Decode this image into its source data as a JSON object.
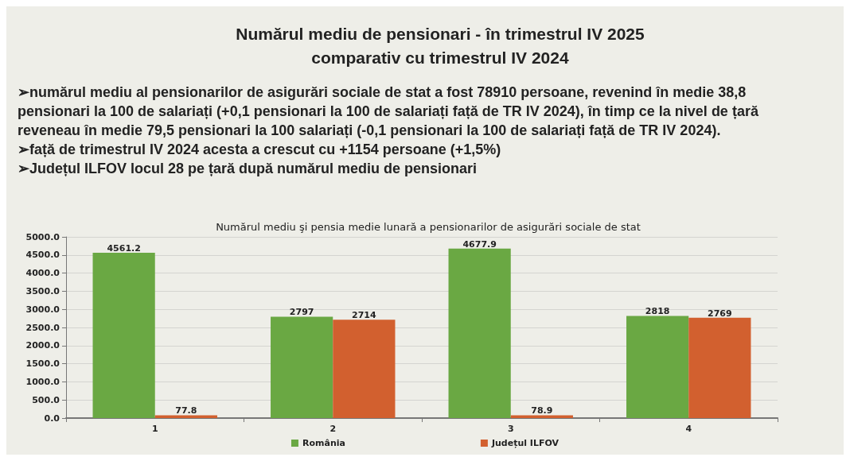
{
  "chart_data": {
    "type": "bar",
    "title": "Numărul mediu de pensionari - în trimestrul IV 2025\ncomparativ cu trimestrul IV 2024",
    "subtitle": "Numărul mediu şi pensia medie lunară a pensionarilor de asigurări sociale de stat",
    "annotations": [
      "➢numărul mediu al pensionarilor de asigurări sociale de stat a fost 78910 persoane, revenind în medie 38,8 pensionari la 100 de salariați (+0,1 pensionari la 100 de salariați față de TR IV 2024), în timp ce la nivel de țară reveneau în medie 79,5 pensionari la 100 salariați (-0,1 pensionari la 100 de salariați față de TR IV 2024).",
      "➢față de trimestrul IV 2024 acesta a crescut cu +1154 persoane (+1,5%)",
      "➢Județul ILFOV locul 28 pe țară după numărul mediu de pensionari"
    ],
    "categories": [
      "1",
      "2",
      "3",
      "4"
    ],
    "series": [
      {
        "name": "România",
        "color": "#6aa843",
        "values": [
          4561.2,
          2797,
          4677.9,
          2818
        ]
      },
      {
        "name": "Județul ILFOV",
        "color": "#d2602f",
        "values": [
          77.8,
          2714,
          78.9,
          2769
        ]
      }
    ],
    "ylim": [
      0,
      5000
    ],
    "yticks": [
      {
        "value": 0,
        "label": "0.0"
      },
      {
        "value": 500,
        "label": "500.0"
      },
      {
        "value": 1000,
        "label": "1000.0"
      },
      {
        "value": 1500,
        "label": "1500.0"
      },
      {
        "value": 2000,
        "label": "2000.0"
      },
      {
        "value": 2500,
        "label": "2500.0"
      },
      {
        "value": 3000,
        "label": "3000.0"
      },
      {
        "value": 3500,
        "label": "3500.0"
      },
      {
        "value": 4000,
        "label": "4000.0"
      },
      {
        "value": 4500,
        "label": "4500.0"
      },
      {
        "value": 5000,
        "label": "5000.0"
      }
    ],
    "grid": "y",
    "legend": "bottom",
    "data_labels": true
  }
}
